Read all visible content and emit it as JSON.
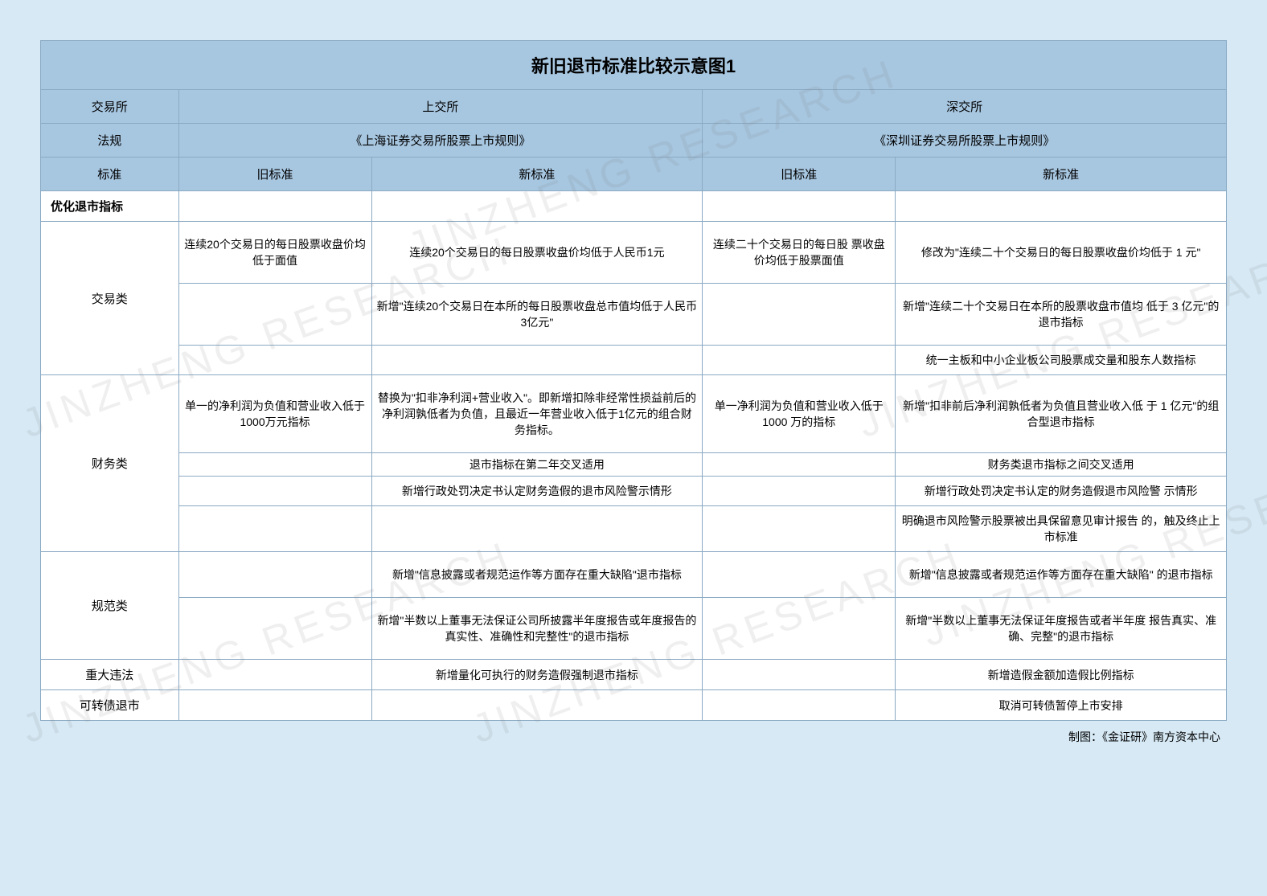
{
  "title": "新旧退市标准比较示意图1",
  "headers": {
    "exchange_label": "交易所",
    "sse": "上交所",
    "szse": "深交所",
    "regulation_label": "法规",
    "sse_reg": "《上海证券交易所股票上市规则》",
    "szse_reg": "《深圳证券交易所股票上市规则》",
    "standard_label": "标准",
    "old_std": "旧标准",
    "new_std": "新标准"
  },
  "section_optimize": "优化退市指标",
  "categories": {
    "trading": "交易类",
    "financial": "财务类",
    "compliance": "规范类",
    "major_violation": "重大违法",
    "convertible_bond": "可转债退市"
  },
  "rows": {
    "trading1": {
      "sse_old": "连续20个交易日的每日股票收盘价均低于面值",
      "sse_new": "连续20个交易日的每日股票收盘价均低于人民币1元",
      "szse_old": "连续二十个交易日的每日股 票收盘价均低于股票面值",
      "szse_new": "修改为\"连续二十个交易日的每日股票收盘价均低于 1 元\""
    },
    "trading2": {
      "sse_old": "",
      "sse_new": "新增\"连续20个交易日在本所的每日股票收盘总市值均低于人民币3亿元\"",
      "szse_old": "",
      "szse_new": "新增\"连续二十个交易日在本所的股票收盘市值均 低于 3 亿元\"的退市指标"
    },
    "trading3": {
      "sse_old": "",
      "sse_new": "",
      "szse_old": "",
      "szse_new": "统一主板和中小企业板公司股票成交量和股东人数指标"
    },
    "financial1": {
      "sse_old": "单一的净利润为负值和营业收入低于1000万元指标",
      "sse_new": "替换为\"扣非净利润+营业收入\"。即新增扣除非经常性损益前后的净利润孰低者为负值，且最近一年营业收入低于1亿元的组合财务指标。",
      "szse_old": "单一净利润为负值和营业收入低于 1000 万的指标",
      "szse_new": "新增\"扣非前后净利润孰低者为负值且营业收入低 于 1 亿元\"的组合型退市指标"
    },
    "financial2": {
      "sse_old": "",
      "sse_new": "退市指标在第二年交叉适用",
      "szse_old": "",
      "szse_new": "财务类退市指标之间交叉适用"
    },
    "financial3": {
      "sse_old": "",
      "sse_new": "新增行政处罚决定书认定财务造假的退市风险警示情形",
      "szse_old": "",
      "szse_new": "新增行政处罚决定书认定的财务造假退市风险警 示情形"
    },
    "financial4": {
      "sse_old": "",
      "sse_new": "",
      "szse_old": "",
      "szse_new": "明确退市风险警示股票被出具保留意见审计报告 的，触及终止上市标准"
    },
    "compliance1": {
      "sse_old": "",
      "sse_new": "新增\"信息披露或者规范运作等方面存在重大缺陷\"退市指标",
      "szse_old": "",
      "szse_new": "新增\"信息披露或者规范运作等方面存在重大缺陷\" 的退市指标"
    },
    "compliance2": {
      "sse_old": "",
      "sse_new": "新增\"半数以上董事无法保证公司所披露半年度报告或年度报告的真实性、准确性和完整性\"的退市指标",
      "szse_old": "",
      "szse_new": "新增\"半数以上董事无法保证年度报告或者半年度 报告真实、准确、完整\"的退市指标"
    },
    "violation1": {
      "sse_old": "",
      "sse_new": "新增量化可执行的财务造假强制退市指标",
      "szse_old": "",
      "szse_new": "新增造假金额加造假比例指标"
    },
    "bond1": {
      "sse_old": "",
      "sse_new": "",
      "szse_old": "",
      "szse_new": "取消可转债暂停上市安排"
    }
  },
  "watermark_text": "JINZHENG RESEARCH",
  "credit": "制图：《金证研》南方资本中心",
  "colors": {
    "page_bg": "#d6e9f5",
    "header_bg": "#a7c6e0",
    "cell_bg": "#ffffff",
    "border": "#8aa9c3",
    "text": "#000000",
    "watermark": "rgba(120,120,120,0.12)"
  }
}
